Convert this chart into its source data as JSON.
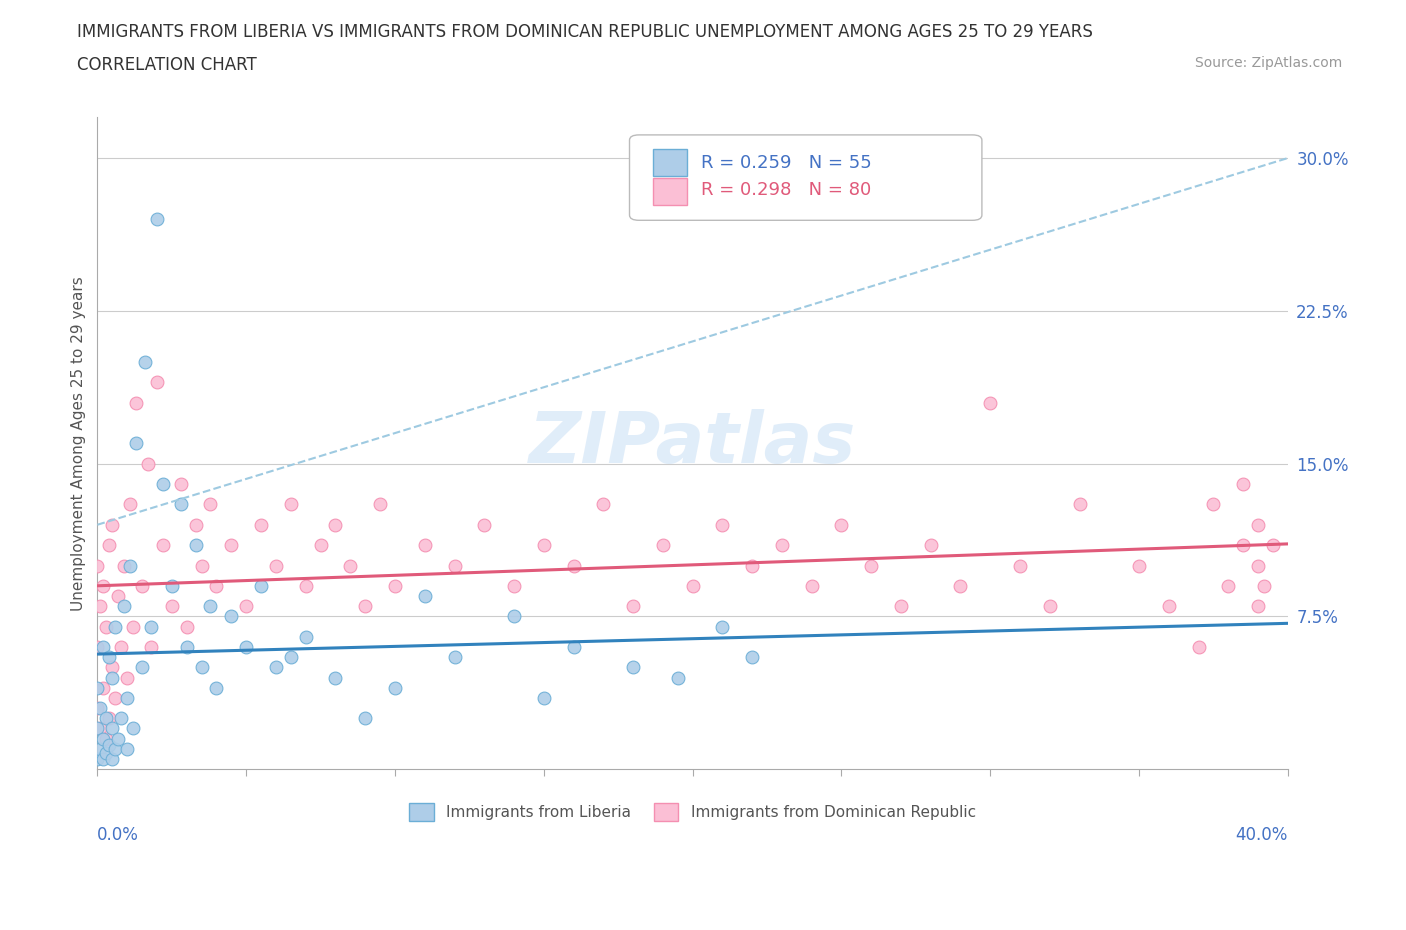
{
  "title_line1": "IMMIGRANTS FROM LIBERIA VS IMMIGRANTS FROM DOMINICAN REPUBLIC UNEMPLOYMENT AMONG AGES 25 TO 29 YEARS",
  "title_line2": "CORRELATION CHART",
  "source": "Source: ZipAtlas.com",
  "ylabel": "Unemployment Among Ages 25 to 29 years",
  "ytick_values": [
    0.075,
    0.15,
    0.225,
    0.3
  ],
  "xmin": 0.0,
  "xmax": 0.4,
  "ymin": 0.0,
  "ymax": 0.32,
  "liberia_R": 0.259,
  "liberia_N": 55,
  "dominican_R": 0.298,
  "dominican_N": 80,
  "liberia_color": "#6baed6",
  "liberia_color_light": "#aecde8",
  "dominican_color": "#f48fb1",
  "dominican_color_light": "#fbbfd5",
  "trend_liberia_solid_color": "#3182bd",
  "trend_liberia_dash_color": "#9ecae1",
  "trend_dominican_color": "#e05a7a",
  "watermark": "ZIPatlas",
  "liberia_x": [
    0.0,
    0.0,
    0.0,
    0.001,
    0.001,
    0.002,
    0.002,
    0.002,
    0.003,
    0.003,
    0.004,
    0.004,
    0.005,
    0.005,
    0.005,
    0.006,
    0.006,
    0.007,
    0.008,
    0.009,
    0.01,
    0.01,
    0.011,
    0.012,
    0.013,
    0.015,
    0.016,
    0.018,
    0.02,
    0.022,
    0.025,
    0.028,
    0.03,
    0.033,
    0.035,
    0.038,
    0.04,
    0.045,
    0.05,
    0.055,
    0.06,
    0.065,
    0.07,
    0.08,
    0.09,
    0.1,
    0.11,
    0.12,
    0.14,
    0.15,
    0.16,
    0.18,
    0.195,
    0.21,
    0.22
  ],
  "liberia_y": [
    0.005,
    0.02,
    0.04,
    0.01,
    0.03,
    0.005,
    0.015,
    0.06,
    0.008,
    0.025,
    0.012,
    0.055,
    0.005,
    0.02,
    0.045,
    0.01,
    0.07,
    0.015,
    0.025,
    0.08,
    0.01,
    0.035,
    0.1,
    0.02,
    0.16,
    0.05,
    0.2,
    0.07,
    0.27,
    0.14,
    0.09,
    0.13,
    0.06,
    0.11,
    0.05,
    0.08,
    0.04,
    0.075,
    0.06,
    0.09,
    0.05,
    0.055,
    0.065,
    0.045,
    0.025,
    0.04,
    0.085,
    0.055,
    0.075,
    0.035,
    0.06,
    0.05,
    0.045,
    0.07,
    0.055
  ],
  "dominican_x": [
    0.0,
    0.0,
    0.0,
    0.001,
    0.001,
    0.002,
    0.002,
    0.003,
    0.003,
    0.004,
    0.004,
    0.005,
    0.005,
    0.006,
    0.007,
    0.008,
    0.009,
    0.01,
    0.011,
    0.012,
    0.013,
    0.015,
    0.017,
    0.018,
    0.02,
    0.022,
    0.025,
    0.028,
    0.03,
    0.033,
    0.035,
    0.038,
    0.04,
    0.045,
    0.05,
    0.055,
    0.06,
    0.065,
    0.07,
    0.075,
    0.08,
    0.085,
    0.09,
    0.095,
    0.1,
    0.11,
    0.12,
    0.13,
    0.14,
    0.15,
    0.16,
    0.17,
    0.18,
    0.19,
    0.2,
    0.21,
    0.22,
    0.23,
    0.24,
    0.25,
    0.26,
    0.27,
    0.28,
    0.29,
    0.3,
    0.31,
    0.32,
    0.33,
    0.35,
    0.36,
    0.37,
    0.375,
    0.38,
    0.385,
    0.385,
    0.39,
    0.39,
    0.39,
    0.392,
    0.395
  ],
  "dominican_y": [
    0.03,
    0.06,
    0.1,
    0.02,
    0.08,
    0.04,
    0.09,
    0.015,
    0.07,
    0.025,
    0.11,
    0.05,
    0.12,
    0.035,
    0.085,
    0.06,
    0.1,
    0.045,
    0.13,
    0.07,
    0.18,
    0.09,
    0.15,
    0.06,
    0.19,
    0.11,
    0.08,
    0.14,
    0.07,
    0.12,
    0.1,
    0.13,
    0.09,
    0.11,
    0.08,
    0.12,
    0.1,
    0.13,
    0.09,
    0.11,
    0.12,
    0.1,
    0.08,
    0.13,
    0.09,
    0.11,
    0.1,
    0.12,
    0.09,
    0.11,
    0.1,
    0.13,
    0.08,
    0.11,
    0.09,
    0.12,
    0.1,
    0.11,
    0.09,
    0.12,
    0.1,
    0.08,
    0.11,
    0.09,
    0.18,
    0.1,
    0.08,
    0.13,
    0.1,
    0.08,
    0.06,
    0.13,
    0.09,
    0.11,
    0.14,
    0.1,
    0.08,
    0.12,
    0.09,
    0.11
  ]
}
